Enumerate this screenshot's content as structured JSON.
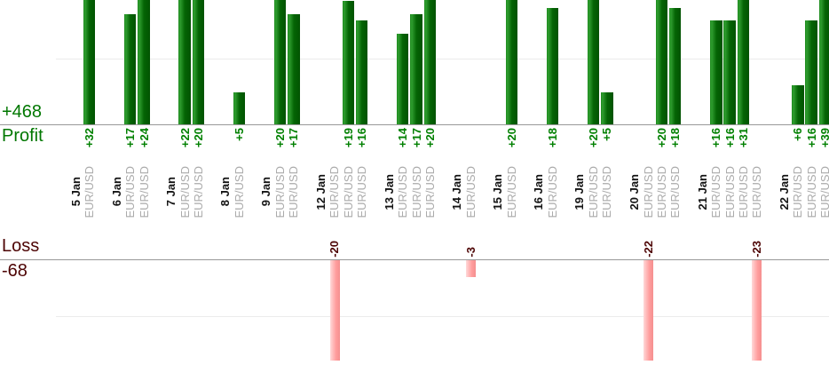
{
  "summary": {
    "profit_total": "+468",
    "profit_label": "Profit",
    "loss_label": "Loss",
    "loss_total": "-68"
  },
  "chart_data": {
    "type": "bar",
    "subtype": "mirrored-profit-loss-daily-trades",
    "title": "",
    "xlabel": "",
    "ylabel_top": "Profit",
    "ylabel_bottom": "Loss",
    "totals": {
      "profit": 468,
      "loss": -68
    },
    "visible_profit_range": [
      0,
      19
    ],
    "visible_loss_range": [
      0,
      -18
    ],
    "gridlines": {
      "profit_at": 10,
      "loss_at": -10,
      "visible": true
    },
    "legend": "none",
    "colors": {
      "profit_bar": "#056305",
      "loss_bar": "#ff9d9d",
      "profit_text": "#008000",
      "profit_summary_text": "#007700",
      "loss_text": "#4d0404",
      "date_text": "#141414",
      "symbol_text": "#ababab",
      "axis_line": "#999999",
      "gridline": "#ebebeb"
    },
    "groups": [
      {
        "date": "5 Jan",
        "trades": [
          {
            "symbol": "EUR/USD",
            "value": 32
          }
        ]
      },
      {
        "date": "6 Jan",
        "trades": [
          {
            "symbol": "EUR/USD",
            "value": 17
          },
          {
            "symbol": "EUR/USD",
            "value": 24
          }
        ]
      },
      {
        "date": "7 Jan",
        "trades": [
          {
            "symbol": "EUR/USD",
            "value": 22
          },
          {
            "symbol": "EUR/USD",
            "value": 20
          }
        ]
      },
      {
        "date": "8 Jan",
        "trades": [
          {
            "symbol": "EUR/USD",
            "value": 5
          }
        ]
      },
      {
        "date": "9 Jan",
        "trades": [
          {
            "symbol": "EUR/USD",
            "value": 20
          },
          {
            "symbol": "EUR/USD",
            "value": 17
          }
        ]
      },
      {
        "date": "12 Jan",
        "trades": [
          {
            "symbol": "EUR/USD",
            "value": -20
          },
          {
            "symbol": "EUR/USD",
            "value": 19
          },
          {
            "symbol": "EUR/USD",
            "value": 16
          }
        ]
      },
      {
        "date": "13 Jan",
        "trades": [
          {
            "symbol": "EUR/USD",
            "value": 14
          },
          {
            "symbol": "EUR/USD",
            "value": 17
          },
          {
            "symbol": "EUR/USD",
            "value": 20
          }
        ]
      },
      {
        "date": "14 Jan",
        "trades": [
          {
            "symbol": "EUR/USD",
            "value": -3
          }
        ]
      },
      {
        "date": "15 Jan",
        "trades": [
          {
            "symbol": "EUR/USD",
            "value": 20
          }
        ]
      },
      {
        "date": "16 Jan",
        "trades": [
          {
            "symbol": "EUR/USD",
            "value": 18
          }
        ]
      },
      {
        "date": "19 Jan",
        "trades": [
          {
            "symbol": "EUR/USD",
            "value": 20
          },
          {
            "symbol": "EUR/USD",
            "value": 5
          }
        ]
      },
      {
        "date": "20 Jan",
        "trades": [
          {
            "symbol": "EUR/USD",
            "value": -22
          },
          {
            "symbol": "EUR/USD",
            "value": 20
          },
          {
            "symbol": "EUR/USD",
            "value": 18
          }
        ]
      },
      {
        "date": "21 Jan",
        "trades": [
          {
            "symbol": "EUR/USD",
            "value": 16
          },
          {
            "symbol": "EUR/USD",
            "value": 16
          },
          {
            "symbol": "EUR/USD",
            "value": 31
          },
          {
            "symbol": "EUR/USD",
            "value": -23
          }
        ]
      },
      {
        "date": "22 Jan",
        "trades": [
          {
            "symbol": "EUR/USD",
            "value": 6
          },
          {
            "symbol": "EUR/USD",
            "value": 16
          },
          {
            "symbol": "EUR/USD",
            "value": 39
          }
        ]
      }
    ]
  }
}
